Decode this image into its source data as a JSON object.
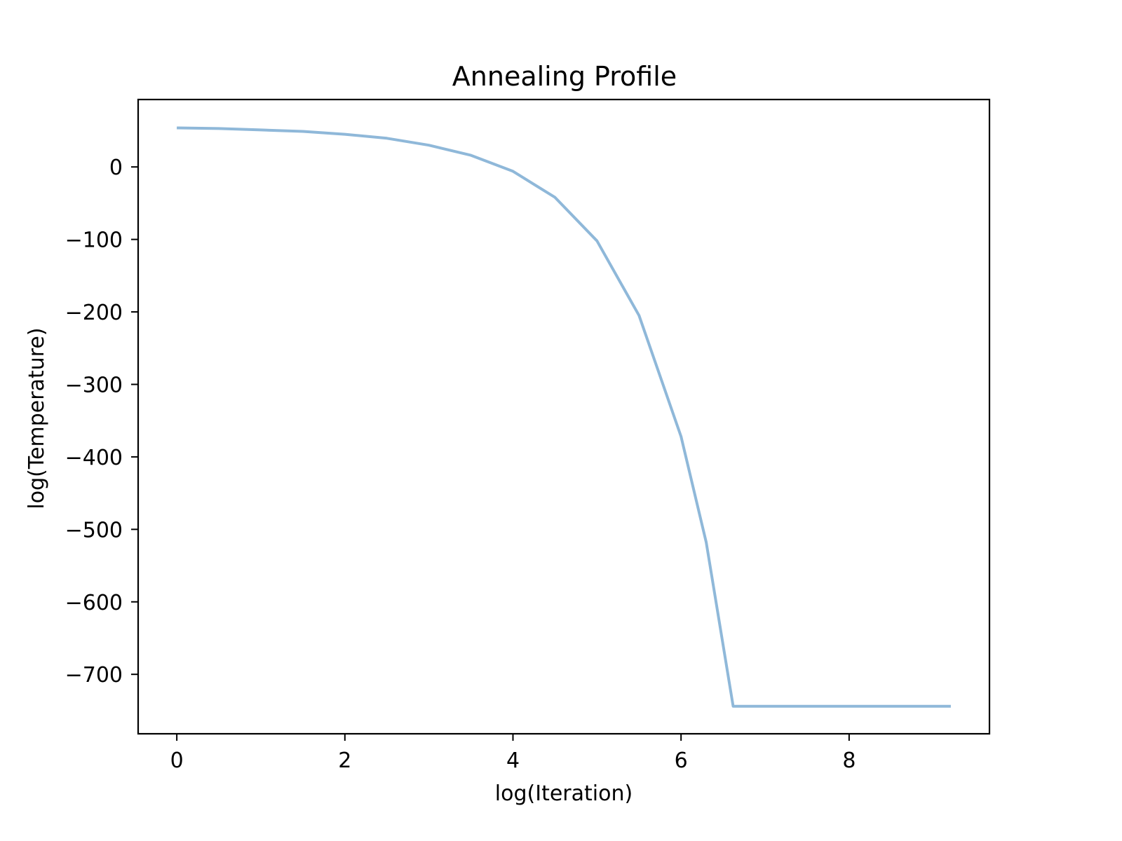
{
  "chart_data": {
    "type": "line",
    "title": "Annealing Profile",
    "xlabel": "log(Iteration)",
    "ylabel": "log(Temperature)",
    "xlim": [
      -0.46,
      9.67
    ],
    "ylim": [
      -782,
      93
    ],
    "xticks": [
      0,
      2,
      4,
      6,
      8
    ],
    "yticks": [
      0,
      -100,
      -200,
      -300,
      -400,
      -500,
      -600,
      -700
    ],
    "grid": false,
    "legend": "none",
    "series": [
      {
        "color": "#8fb8d9",
        "x": [
          0,
          0.5,
          1.0,
          1.5,
          2.0,
          2.5,
          3.0,
          3.5,
          4.0,
          4.5,
          5.0,
          5.5,
          6.0,
          6.3,
          6.62,
          7.0,
          7.5,
          8.0,
          8.5,
          9.21
        ],
        "y": [
          53.8,
          53,
          51,
          49,
          45,
          39.5,
          30,
          16,
          -6,
          -42,
          -102,
          -205,
          -372,
          -518,
          -744,
          -744,
          -744,
          -744,
          -744,
          -744
        ]
      }
    ]
  }
}
